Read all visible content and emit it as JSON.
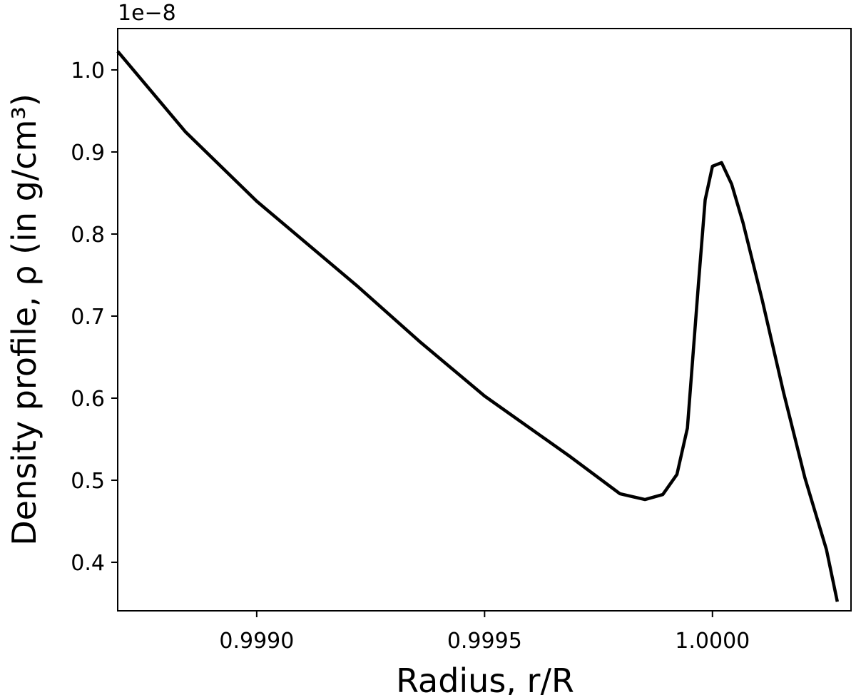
{
  "chart_data": {
    "type": "line",
    "xlabel": "Radius, r/R",
    "ylabel": "Density profile, ρ (in g/cm³)",
    "y_offset_text": "1e−8",
    "x": [
      0.998695,
      0.998844,
      0.999,
      0.999219,
      0.99936,
      0.9995,
      0.999688,
      0.999797,
      0.999852,
      0.999891,
      0.999922,
      0.999945,
      0.999969,
      0.999984,
      1.0,
      1.00002,
      1.000042,
      1.000067,
      1.000109,
      1.000156,
      1.000203,
      1.00025,
      1.000274
    ],
    "series": [
      {
        "color": "#000000",
        "values": [
          1.0226,
          0.9243,
          0.84,
          0.7374,
          0.6678,
          0.6026,
          0.5287,
          0.4835,
          0.4765,
          0.4826,
          0.507,
          0.5635,
          0.7374,
          0.8417,
          0.8826,
          0.887,
          0.8609,
          0.8139,
          0.72,
          0.607,
          0.5026,
          0.4157,
          0.352
        ]
      }
    ],
    "xlim": [
      0.998695,
      1.000304
    ],
    "ylim": [
      0.3409,
      1.0504
    ],
    "xticks": [
      {
        "value": 0.999,
        "label": "0.9990"
      },
      {
        "value": 0.9995,
        "label": "0.9995"
      },
      {
        "value": 1,
        "label": "1.0000"
      }
    ],
    "yticks": [
      0.4,
      0.5,
      0.6,
      0.7,
      0.8,
      0.9,
      {
        "value": 1,
        "label": "1.0"
      }
    ]
  }
}
